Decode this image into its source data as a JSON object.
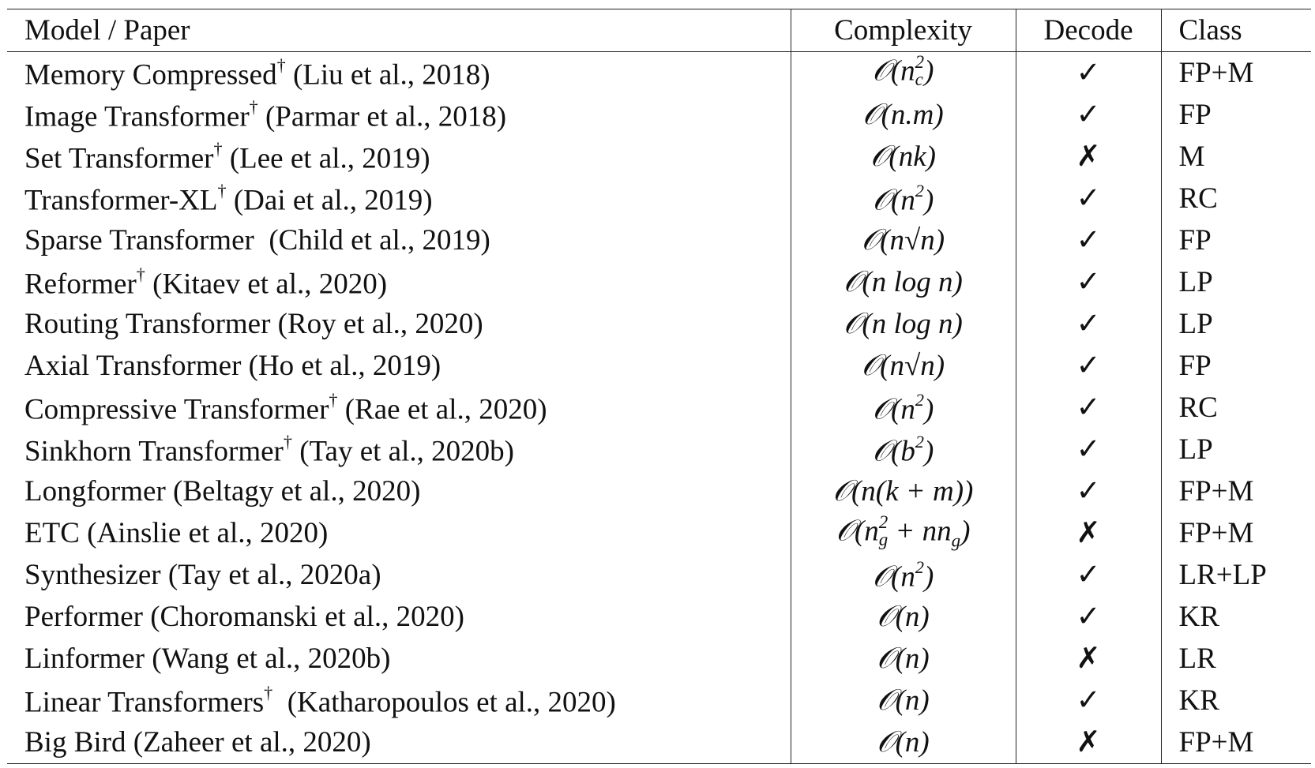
{
  "table": {
    "header": [
      "Model / Paper",
      "Complexity",
      "Decode",
      "Class"
    ],
    "rows": [
      [
        [
          "Memory Compressed",
          {
            "sup": "†"
          },
          " (Liu et al., 2018)"
        ],
        [
          "𝒪(n",
          {
            "sup": "2",
            "sub": "c"
          },
          ")"
        ],
        "✓",
        "FP+M"
      ],
      [
        [
          "Image Transformer",
          {
            "sup": "†"
          },
          " (Parmar et al., 2018)"
        ],
        [
          "𝒪(n.m)"
        ],
        "✓",
        "FP"
      ],
      [
        [
          "Set Transformer",
          {
            "sup": "†"
          },
          " (Lee et al., 2019)"
        ],
        [
          "𝒪(nk)"
        ],
        "✗",
        "M"
      ],
      [
        [
          "Transformer-XL",
          {
            "sup": "†"
          },
          " (Dai et al., 2019)"
        ],
        [
          "𝒪(n",
          {
            "sup": "2"
          },
          ")"
        ],
        "✓",
        "RC"
      ],
      [
        [
          "Sparse Transformer  (Child et al., 2019)"
        ],
        [
          "𝒪(n√n)"
        ],
        "✓",
        "FP"
      ],
      [
        [
          "Reformer",
          {
            "sup": "†"
          },
          " (Kitaev et al., 2020)"
        ],
        [
          "𝒪(n log n)"
        ],
        "✓",
        "LP"
      ],
      [
        [
          "Routing Transformer (Roy et al., 2020)"
        ],
        [
          "𝒪(n log n)"
        ],
        "✓",
        "LP"
      ],
      [
        [
          "Axial Transformer (Ho et al., 2019)"
        ],
        [
          "𝒪(n√n)"
        ],
        "✓",
        "FP"
      ],
      [
        [
          "Compressive Transformer",
          {
            "sup": "†"
          },
          " (Rae et al., 2020)"
        ],
        [
          "𝒪(n",
          {
            "sup": "2"
          },
          ")"
        ],
        "✓",
        "RC"
      ],
      [
        [
          "Sinkhorn Transformer",
          {
            "sup": "†"
          },
          " (Tay et al., 2020b)"
        ],
        [
          "𝒪(b",
          {
            "sup": "2"
          },
          ")"
        ],
        "✓",
        "LP"
      ],
      [
        [
          "Longformer (Beltagy et al., 2020)"
        ],
        [
          "𝒪(n(k + m))"
        ],
        "✓",
        "FP+M"
      ],
      [
        [
          "ETC (Ainslie et al., 2020)"
        ],
        [
          "𝒪(n",
          {
            "sup": "2",
            "sub": "g"
          },
          " + nn",
          {
            "sub": "g"
          },
          ")"
        ],
        "✗",
        "FP+M"
      ],
      [
        [
          "Synthesizer (Tay et al., 2020a)"
        ],
        [
          "𝒪(n",
          {
            "sup": "2"
          },
          ")"
        ],
        "✓",
        "LR+LP"
      ],
      [
        [
          "Performer (Choromanski et al., 2020)"
        ],
        [
          "𝒪(n)"
        ],
        "✓",
        "KR"
      ],
      [
        [
          "Linformer (Wang et al., 2020b)"
        ],
        [
          "𝒪(n)"
        ],
        "✗",
        "LR"
      ],
      [
        [
          "Linear Transformers",
          {
            "sup": "†"
          },
          "  (Katharopoulos et al., 2020)"
        ],
        [
          "𝒪(n)"
        ],
        "✓",
        "KR"
      ],
      [
        [
          "Big Bird (Zaheer et al., 2020)"
        ],
        [
          "𝒪(n)"
        ],
        "✗",
        "FP+M"
      ]
    ]
  }
}
